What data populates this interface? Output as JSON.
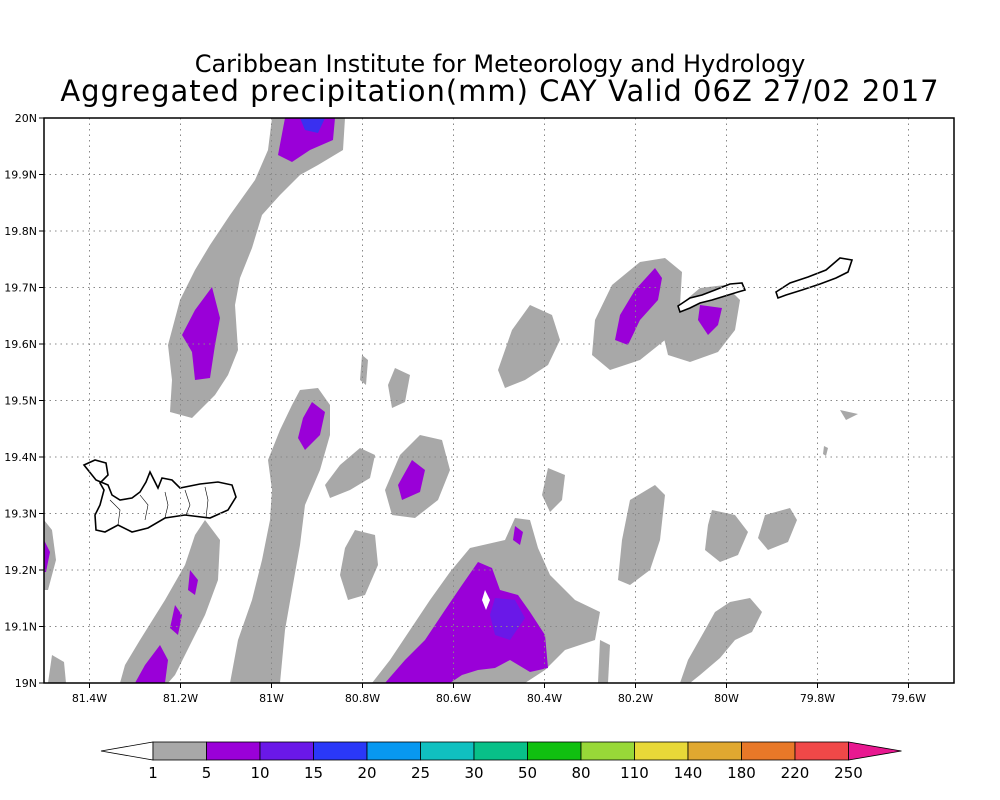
{
  "title": {
    "line1": "Caribbean Institute for Meteorology and Hydrology",
    "line2": "Aggregated precipitation(mm) CAY Valid 06Z 27/02 2017"
  },
  "map": {
    "lat_labels": [
      "19N",
      "19.1N",
      "19.2N",
      "19.3N",
      "19.4N",
      "19.5N",
      "19.6N",
      "19.7N",
      "19.8N",
      "19.9N",
      "20N"
    ],
    "lon_labels": [
      "81.4W",
      "81.2W",
      "81W",
      "80.8W",
      "80.6W",
      "80.4W",
      "80.2W",
      "80W",
      "79.8W",
      "79.6W"
    ],
    "lat_range": [
      19.0,
      20.0
    ],
    "lon_range": [
      -81.5,
      -79.5
    ],
    "gridlines": true,
    "colors": {
      "land_outline": "#000000",
      "gridline": "#888888"
    }
  },
  "colorbar": {
    "labels": [
      "1",
      "5",
      "10",
      "15",
      "20",
      "25",
      "30",
      "50",
      "80",
      "110",
      "140",
      "180",
      "220",
      "250"
    ],
    "colors": [
      "#a8a8a8",
      "#9a00d8",
      "#6a18e8",
      "#2a38f8",
      "#0898f0",
      "#10c0c0",
      "#08c088",
      "#10c010",
      "#98d838",
      "#e8d838",
      "#e0a830",
      "#e87828",
      "#f04848",
      "#e81890"
    ]
  }
}
